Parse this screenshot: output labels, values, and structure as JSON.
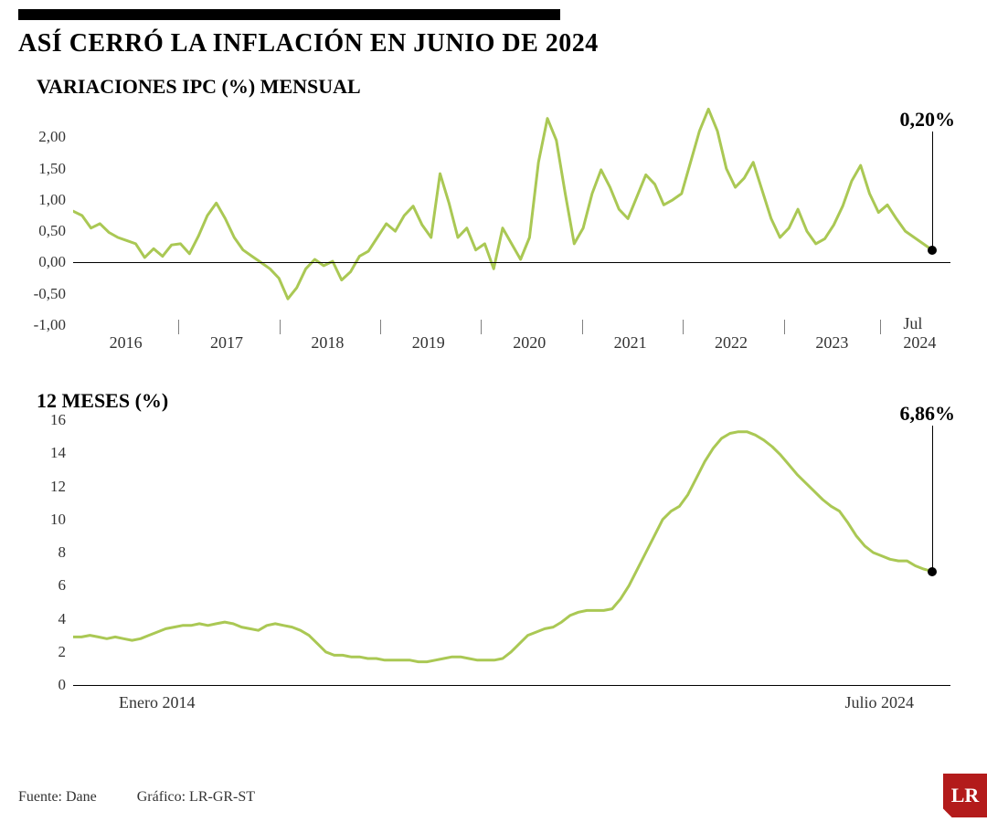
{
  "main_title": "ASÍ CERRÓ LA INFLACIÓN EN JUNIO DE 2024",
  "chart1": {
    "type": "line",
    "subtitle": "VARIACIONES IPC (%) MENSUAL",
    "line_color": "#aac854",
    "line_width": 3,
    "background_color": "#ffffff",
    "zero_line_color": "#000000",
    "y_ticks": [
      "2,00",
      "1,50",
      "1,00",
      "0,50",
      "0,00",
      "-0,50",
      "-1,00"
    ],
    "y_tick_values": [
      2.0,
      1.5,
      1.0,
      0.5,
      0.0,
      -0.5,
      -1.0
    ],
    "ylim": [
      -1.0,
      2.5
    ],
    "x_labels": [
      "2016",
      "2017",
      "2018",
      "2019",
      "2020",
      "2021",
      "2022",
      "2023",
      "Jul 2024"
    ],
    "callout_value": "0,20%",
    "end_dot_color": "#000000",
    "values": [
      0.82,
      0.75,
      0.55,
      0.62,
      0.48,
      0.4,
      0.35,
      0.3,
      0.08,
      0.22,
      0.1,
      0.28,
      0.3,
      0.14,
      0.42,
      0.75,
      0.95,
      0.7,
      0.4,
      0.2,
      0.1,
      0.0,
      -0.1,
      -0.25,
      -0.58,
      -0.4,
      -0.1,
      0.05,
      -0.05,
      0.02,
      -0.28,
      -0.15,
      0.1,
      0.18,
      0.4,
      0.62,
      0.5,
      0.75,
      0.9,
      0.6,
      0.4,
      1.42,
      0.95,
      0.4,
      0.55,
      0.2,
      0.3,
      -0.1,
      0.55,
      0.3,
      0.05,
      0.4,
      1.6,
      2.3,
      1.95,
      1.1,
      0.3,
      0.55,
      1.1,
      1.48,
      1.2,
      0.85,
      0.7,
      1.05,
      1.4,
      1.25,
      0.92,
      1.0,
      1.1,
      1.6,
      2.1,
      2.45,
      2.1,
      1.5,
      1.2,
      1.35,
      1.6,
      1.15,
      0.7,
      0.4,
      0.55,
      0.85,
      0.5,
      0.3,
      0.38,
      0.6,
      0.9,
      1.3,
      1.55,
      1.1,
      0.8,
      0.92,
      0.7,
      0.5,
      0.4,
      0.3,
      0.2
    ],
    "label_fontsize": 17,
    "subtitle_fontsize": 22
  },
  "chart2": {
    "type": "line",
    "subtitle": "12 MESES (%)",
    "line_color": "#aac854",
    "line_width": 3,
    "background_color": "#ffffff",
    "zero_line_color": "#000000",
    "y_ticks": [
      "16",
      "14",
      "12",
      "10",
      "8",
      "6",
      "4",
      "2",
      "0"
    ],
    "y_tick_values": [
      16,
      14,
      12,
      10,
      8,
      6,
      4,
      2,
      0
    ],
    "ylim": [
      0,
      16
    ],
    "x_labels": [
      "Enero 2014",
      "Julio 2024"
    ],
    "callout_value": "6,86%",
    "end_dot_color": "#000000",
    "values": [
      2.9,
      2.9,
      3.0,
      2.9,
      2.8,
      2.9,
      2.8,
      2.7,
      2.8,
      3.0,
      3.2,
      3.4,
      3.5,
      3.6,
      3.6,
      3.7,
      3.6,
      3.7,
      3.8,
      3.7,
      3.5,
      3.4,
      3.3,
      3.6,
      3.7,
      3.6,
      3.5,
      3.3,
      3.0,
      2.5,
      2.0,
      1.8,
      1.8,
      1.7,
      1.7,
      1.6,
      1.6,
      1.5,
      1.5,
      1.5,
      1.5,
      1.4,
      1.4,
      1.5,
      1.6,
      1.7,
      1.7,
      1.6,
      1.5,
      1.5,
      1.5,
      1.6,
      2.0,
      2.5,
      3.0,
      3.2,
      3.4,
      3.5,
      3.8,
      4.2,
      4.4,
      4.5,
      4.5,
      4.5,
      4.6,
      5.2,
      6.0,
      7.0,
      8.0,
      9.0,
      10.0,
      10.5,
      10.8,
      11.5,
      12.5,
      13.5,
      14.3,
      14.9,
      15.2,
      15.3,
      15.3,
      15.1,
      14.8,
      14.4,
      13.9,
      13.3,
      12.7,
      12.2,
      11.7,
      11.2,
      10.8,
      10.5,
      9.8,
      9.0,
      8.4,
      8.0,
      7.8,
      7.6,
      7.5,
      7.5,
      7.2,
      7.0,
      6.86
    ],
    "label_fontsize": 17,
    "subtitle_fontsize": 22
  },
  "footer": {
    "source_label": "Fuente: Dane",
    "graphic_label": "Gráfico: LR-GR-ST"
  },
  "logo_text": "LR",
  "logo_bg": "#b31b1b"
}
